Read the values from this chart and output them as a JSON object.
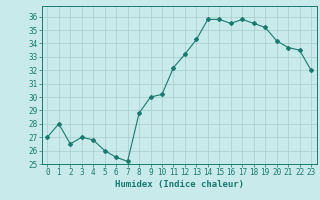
{
  "x": [
    0,
    1,
    2,
    3,
    4,
    5,
    6,
    7,
    8,
    9,
    10,
    11,
    12,
    13,
    14,
    15,
    16,
    17,
    18,
    19,
    20,
    21,
    22,
    23
  ],
  "y": [
    27,
    28,
    26.5,
    27,
    26.8,
    26,
    25.5,
    25.2,
    28.8,
    30,
    30.2,
    32.2,
    33.2,
    34.3,
    35.8,
    35.8,
    35.5,
    35.8,
    35.5,
    35.2,
    34.2,
    33.7,
    33.5,
    32
  ],
  "xlabel": "Humidex (Indice chaleur)",
  "xlim": [
    -0.5,
    23.5
  ],
  "ylim": [
    25,
    36.8
  ],
  "yticks": [
    25,
    26,
    27,
    28,
    29,
    30,
    31,
    32,
    33,
    34,
    35,
    36
  ],
  "xticks": [
    0,
    1,
    2,
    3,
    4,
    5,
    6,
    7,
    8,
    9,
    10,
    11,
    12,
    13,
    14,
    15,
    16,
    17,
    18,
    19,
    20,
    21,
    22,
    23
  ],
  "line_color": "#1a7a6e",
  "marker": "D",
  "markersize": 2.0,
  "linewidth": 0.8,
  "bg_color": "#c8eaea",
  "grid_color": "#a8cccc",
  "axes_color": "#1a7a6e",
  "tick_fontsize": 5.5,
  "xlabel_fontsize": 6.5
}
